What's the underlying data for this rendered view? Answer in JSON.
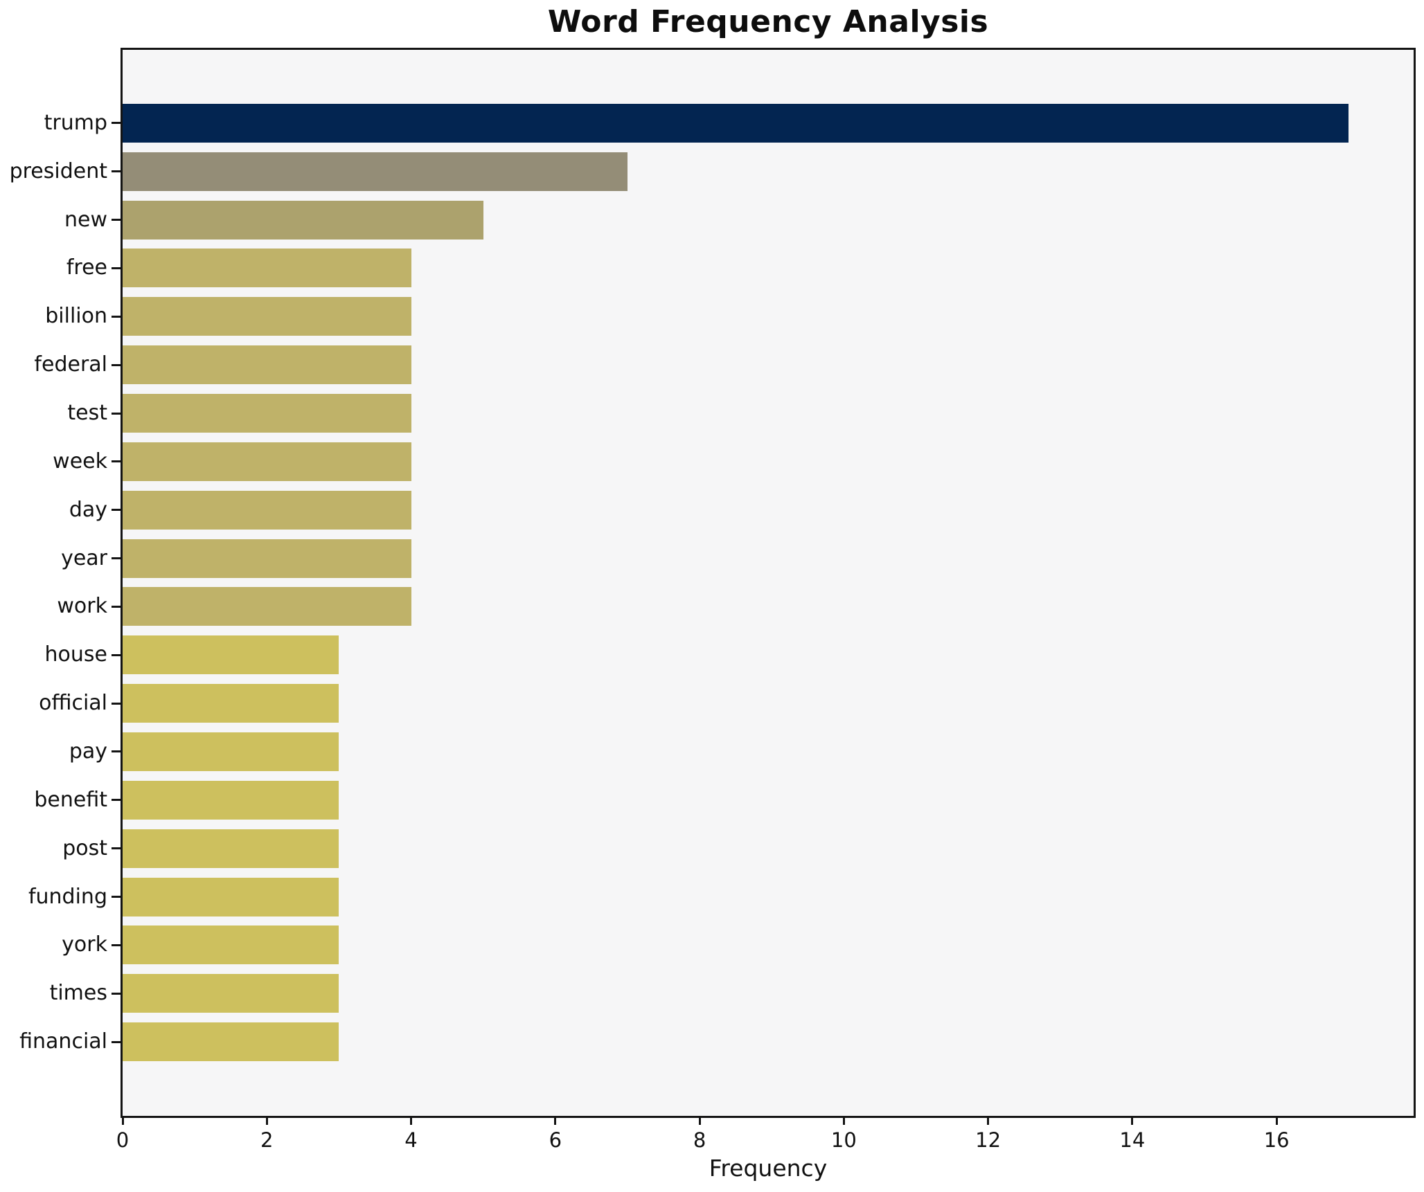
{
  "chart_data": {
    "type": "bar",
    "orientation": "horizontal",
    "title": "Word Frequency Analysis",
    "xlabel": "Frequency",
    "ylabel": "",
    "categories": [
      "trump",
      "president",
      "new",
      "free",
      "billion",
      "federal",
      "test",
      "week",
      "day",
      "year",
      "work",
      "house",
      "official",
      "pay",
      "benefit",
      "post",
      "funding",
      "york",
      "times",
      "financial"
    ],
    "values": [
      17,
      7,
      5,
      4,
      4,
      4,
      4,
      4,
      4,
      4,
      4,
      3,
      3,
      3,
      3,
      3,
      3,
      3,
      3,
      3
    ],
    "bar_colors": [
      "#032551",
      "#948d77",
      "#aca26d",
      "#bfb269",
      "#bfb269",
      "#bfb269",
      "#bfb269",
      "#bfb269",
      "#bfb269",
      "#bfb269",
      "#bfb269",
      "#cdc05e",
      "#cdc05e",
      "#cdc05e",
      "#cdc05e",
      "#cdc05e",
      "#cdc05e",
      "#cdc05e",
      "#cdc05e",
      "#cdc05e"
    ],
    "xticks": [
      0,
      2,
      4,
      6,
      8,
      10,
      12,
      14,
      16
    ],
    "xlim": [
      0,
      17.9
    ],
    "grid": false,
    "legend": null,
    "plot_background": "#f6f6f7",
    "figure_background": "#ffffff",
    "axis_color": "#141414",
    "text_color": "#111111"
  }
}
